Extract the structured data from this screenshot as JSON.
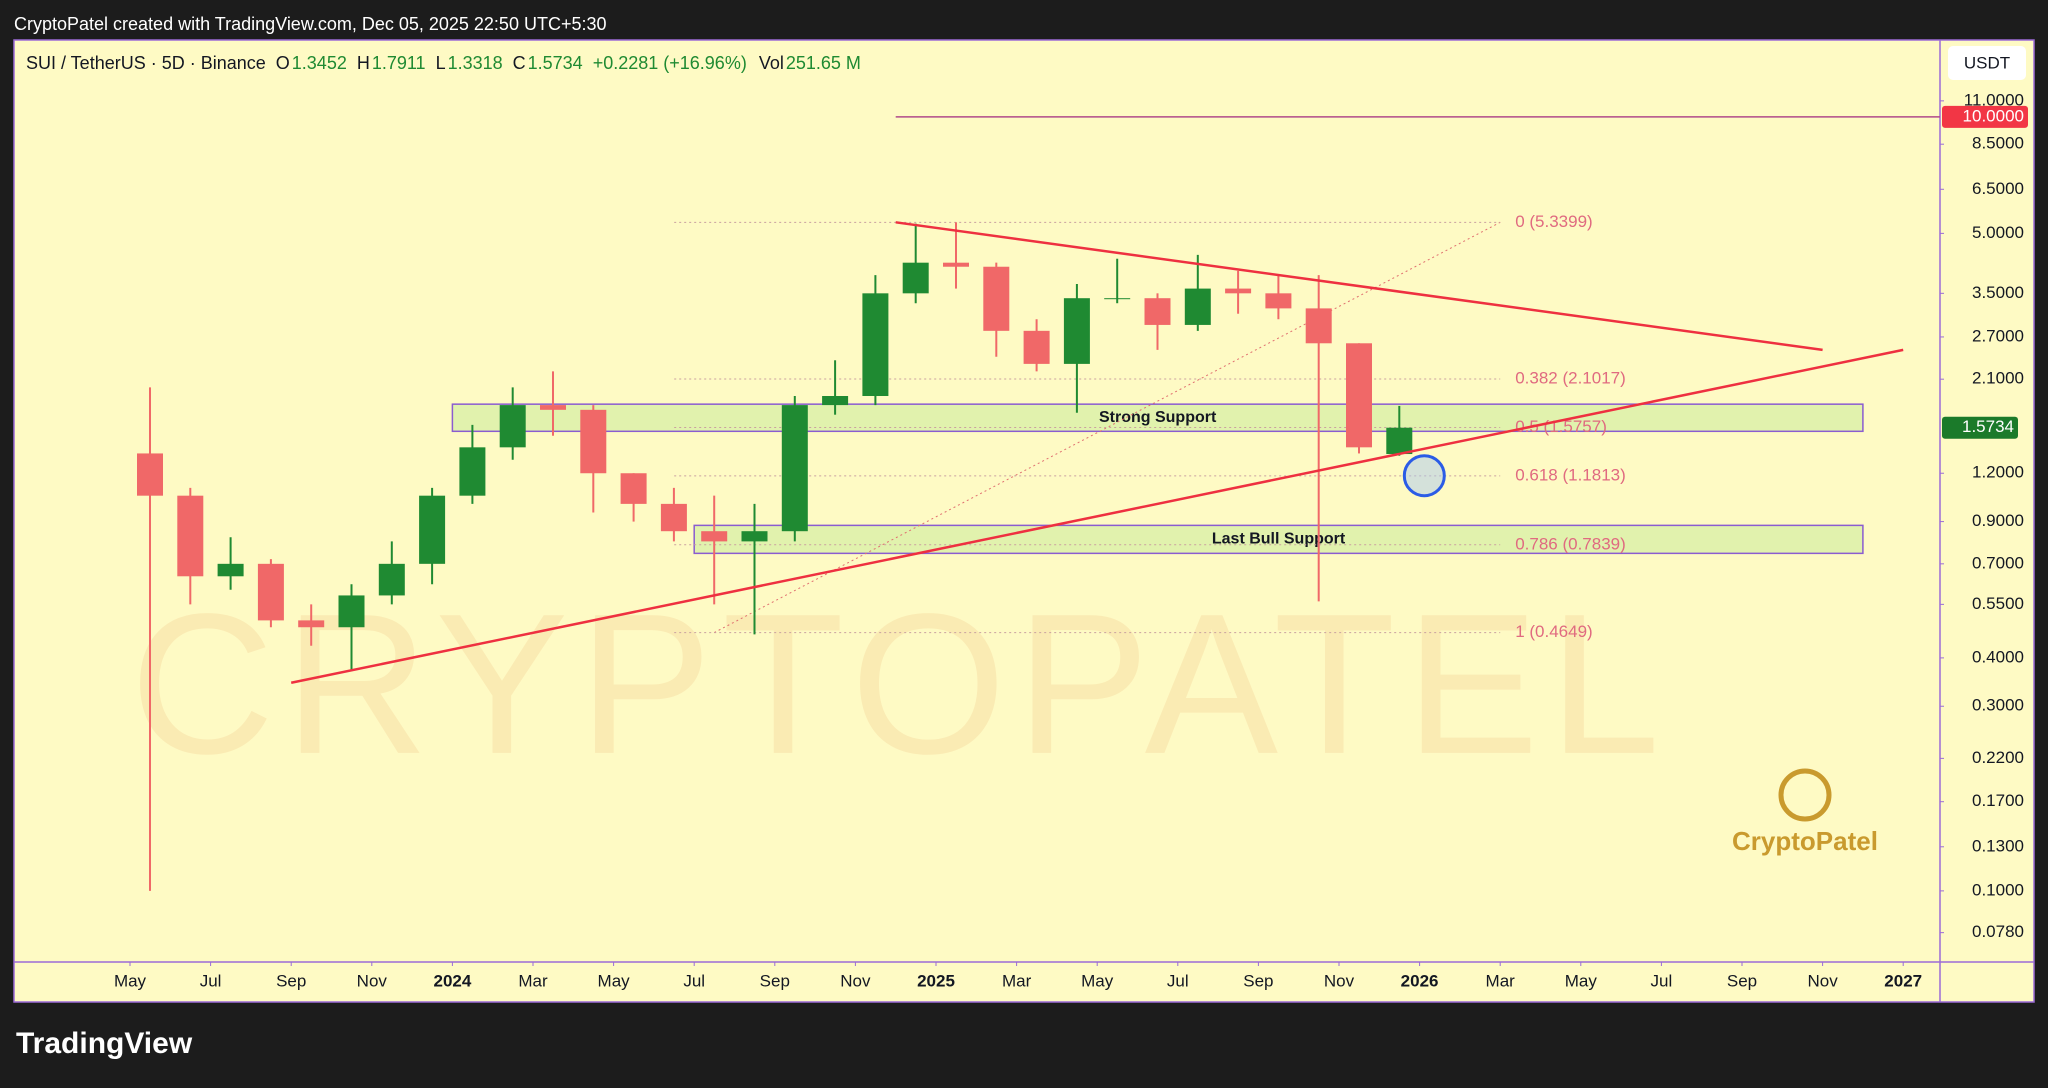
{
  "header": "CryptoPatel created with TradingView.com, Dec 05, 2025 22:50 UTC+5:30",
  "footer": "TradingView",
  "chart_data": {
    "type": "candlestick",
    "title": "SUI / TetherUS · 5D · Binance",
    "legend_items": [
      {
        "label": "O",
        "value": 1.3452
      },
      {
        "label": "H",
        "value": 1.7911
      },
      {
        "label": "L",
        "value": 1.3318
      },
      {
        "label": "C",
        "value": 1.5734
      }
    ],
    "change": "+0.2281 (+16.96%)",
    "volume_label": "Vol",
    "volume": "251.65 M",
    "currency": "USDT",
    "log_scale": true,
    "up_color": "#1f8a32",
    "down_color": "#f06868",
    "x": [
      "2023-05",
      "2023-06",
      "2023-07",
      "2023-08",
      "2023-09",
      "2023-10",
      "2023-11",
      "2023-12",
      "2024-01",
      "2024-02",
      "2024-03",
      "2024-04",
      "2024-05",
      "2024-06",
      "2024-07",
      "2024-08",
      "2024-09",
      "2024-10",
      "2024-11",
      "2024-12",
      "2025-01",
      "2025-02",
      "2025-03",
      "2025-04",
      "2025-05",
      "2025-06",
      "2025-07",
      "2025-08",
      "2025-09",
      "2025-10",
      "2025-11",
      "2025-12"
    ],
    "open": [
      1.35,
      1.05,
      0.65,
      0.7,
      0.5,
      0.48,
      0.58,
      0.7,
      1.05,
      1.4,
      1.8,
      1.75,
      1.2,
      1.0,
      0.85,
      0.8,
      0.85,
      1.8,
      1.9,
      3.5,
      4.2,
      4.1,
      2.8,
      2.3,
      3.4,
      3.4,
      2.9,
      3.6,
      3.5,
      3.2,
      2.6,
      1.3452
    ],
    "high": [
      2.0,
      1.1,
      0.82,
      0.72,
      0.55,
      0.62,
      0.8,
      1.1,
      1.6,
      2.0,
      2.2,
      1.8,
      1.2,
      1.1,
      1.05,
      1.0,
      1.9,
      2.35,
      3.9,
      5.3,
      5.34,
      4.2,
      3.0,
      3.7,
      4.3,
      3.5,
      4.4,
      4.0,
      3.9,
      3.9,
      2.6,
      1.7911
    ],
    "low": [
      0.1,
      0.55,
      0.6,
      0.48,
      0.43,
      0.37,
      0.55,
      0.62,
      1.0,
      1.3,
      1.5,
      0.95,
      0.9,
      0.8,
      0.55,
      0.46,
      0.8,
      1.7,
      1.8,
      3.3,
      3.6,
      2.4,
      2.2,
      1.72,
      3.3,
      2.5,
      2.8,
      3.1,
      3.0,
      0.56,
      1.35,
      1.3318
    ],
    "close": [
      1.05,
      0.65,
      0.7,
      0.5,
      0.48,
      0.58,
      0.7,
      1.05,
      1.4,
      1.8,
      1.75,
      1.2,
      1.0,
      0.85,
      0.8,
      0.85,
      1.8,
      1.9,
      3.5,
      4.2,
      4.1,
      2.8,
      2.3,
      3.4,
      3.4,
      2.9,
      3.6,
      3.5,
      3.2,
      2.6,
      1.4,
      1.5734
    ],
    "ylim": [
      0.0655,
      15.8
    ],
    "yticks": [
      {
        "value": 11,
        "label": "11.0000"
      },
      {
        "value": 8.5,
        "label": "8.5000"
      },
      {
        "value": 6.5,
        "label": "6.5000"
      },
      {
        "value": 5,
        "label": "5.0000"
      },
      {
        "value": 3.5,
        "label": "3.5000"
      },
      {
        "value": 2.7,
        "label": "2.7000"
      },
      {
        "value": 2.1,
        "label": "2.1000"
      },
      {
        "value": 1.2,
        "label": "1.2000"
      },
      {
        "value": 0.9,
        "label": "0.9000"
      },
      {
        "value": 0.7,
        "label": "0.7000"
      },
      {
        "value": 0.55,
        "label": "0.5500"
      },
      {
        "value": 0.4,
        "label": "0.4000"
      },
      {
        "value": 0.3,
        "label": "0.3000"
      },
      {
        "value": 0.22,
        "label": "0.2200"
      },
      {
        "value": 0.17,
        "label": "0.1700"
      },
      {
        "value": 0.13,
        "label": "0.1300"
      },
      {
        "value": 0.1,
        "label": "0.1000"
      },
      {
        "value": 0.078,
        "label": "0.0780"
      }
    ],
    "xticks": [
      {
        "value": "2023-05",
        "label": "May"
      },
      {
        "value": "2023-07",
        "label": "Jul"
      },
      {
        "value": "2023-09",
        "label": "Sep"
      },
      {
        "value": "2023-11",
        "label": "Nov"
      },
      {
        "value": "2024-01",
        "label": "2024"
      },
      {
        "value": "2024-03",
        "label": "Mar"
      },
      {
        "value": "2024-05",
        "label": "May"
      },
      {
        "value": "2024-07",
        "label": "Jul"
      },
      {
        "value": "2024-09",
        "label": "Sep"
      },
      {
        "value": "2024-11",
        "label": "Nov"
      },
      {
        "value": "2025-01",
        "label": "2025"
      },
      {
        "value": "2025-03",
        "label": "Mar"
      },
      {
        "value": "2025-05",
        "label": "May"
      },
      {
        "value": "2025-07",
        "label": "Jul"
      },
      {
        "value": "2025-09",
        "label": "Sep"
      },
      {
        "value": "2025-11",
        "label": "Nov"
      },
      {
        "value": "2026-01",
        "label": "2026"
      },
      {
        "value": "2026-03",
        "label": "Mar"
      },
      {
        "value": "2026-05",
        "label": "May"
      },
      {
        "value": "2026-07",
        "label": "Jul"
      },
      {
        "value": "2026-09",
        "label": "Sep"
      },
      {
        "value": "2026-11",
        "label": "Nov"
      },
      {
        "value": "2027-01",
        "label": "2027"
      }
    ],
    "last_price": {
      "value": 1.5734,
      "label": "1.5734"
    },
    "level_line": {
      "value": 10,
      "label": "10.0000",
      "x": "2024-12"
    },
    "fib_x": [
      "2024-07",
      "2026-03"
    ],
    "fib_levels": [
      {
        "value": 5.3399,
        "label": "0 (5.3399)"
      },
      {
        "value": 2.1017,
        "label": "0.382 (2.1017)"
      },
      {
        "value": 1.5757,
        "label": "0.5 (1.5757)"
      },
      {
        "value": 1.1813,
        "label": "0.618 (1.1813)"
      },
      {
        "value": 0.7839,
        "label": "0.786 (0.7839)"
      },
      {
        "value": 0.4649,
        "label": "1 (0.4649)"
      }
    ],
    "zones": [
      {
        "name": "Strong Support",
        "top": 1.81,
        "bottom": 1.54,
        "x": [
          "2024-01",
          "2026-12"
        ]
      },
      {
        "name": "Last Bull Support",
        "top": 0.88,
        "bottom": 0.745,
        "x": [
          "2024-07",
          "2026-12"
        ]
      }
    ],
    "trendlines": [
      {
        "x": [
          "2024-12",
          "2026-11"
        ],
        "values": [
          5.34,
          2.5
        ]
      },
      {
        "x": [
          "2023-09",
          "2027-01"
        ],
        "values": [
          0.345,
          2.5
        ]
      }
    ],
    "watermark": "CRYPTOPATEL",
    "logo_text": "CryptoPatel"
  }
}
